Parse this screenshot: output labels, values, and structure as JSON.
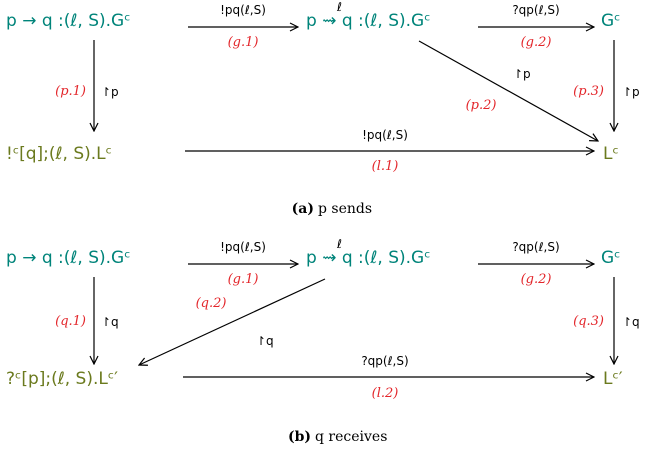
{
  "colors": {
    "teal": "#00847a",
    "olive": "#6b7a1e",
    "red": "#e3262b",
    "black": "#000000"
  },
  "panel_a": {
    "nodes": {
      "start": "p → q :(ℓ, S).Gᶜ",
      "mid": "p ⇝ q :(ℓ, S).Gᶜ",
      "mid_over": "ℓ",
      "right": "Gᶜ",
      "bottom_left": "!ᶜ[q];(ℓ, S).Lᶜ",
      "bottom_right": "Lᶜ"
    },
    "edges": {
      "g1_label": "!pq(ℓ,S)",
      "g1_rule": "(g.1)",
      "g2_label": "?qp(ℓ,S)",
      "g2_rule": "(g.2)",
      "p1_proj": "↾p",
      "p1_rule": "(p.1)",
      "p2_proj": "↾p",
      "p2_rule": "(p.2)",
      "p3_proj": "↾p",
      "p3_rule": "(p.3)",
      "l1_label": "!pq(ℓ,S)",
      "l1_rule": "(l.1)"
    },
    "caption_letter": "(a)",
    "caption_text": "p sends"
  },
  "panel_b": {
    "nodes": {
      "start": "p → q :(ℓ, S).Gᶜ",
      "mid": "p ⇝ q :(ℓ, S).Gᶜ",
      "mid_over": "ℓ",
      "right": "Gᶜ",
      "bottom_left": "?ᶜ[p];(ℓ, S).Lᶜ′",
      "bottom_right": "Lᶜ′"
    },
    "edges": {
      "g1_label": "!pq(ℓ,S)",
      "g1_rule": "(g.1)",
      "g2_label": "?qp(ℓ,S)",
      "g2_rule": "(g.2)",
      "q1_proj": "↾q",
      "q1_rule": "(q.1)",
      "q2_proj": "↾q",
      "q2_rule": "(q.2)",
      "q3_proj": "↾q",
      "q3_rule": "(q.3)",
      "l2_label": "?qp(ℓ,S)",
      "l2_rule": "(l.2)"
    },
    "caption_letter": "(b)",
    "caption_text": "q receives"
  }
}
